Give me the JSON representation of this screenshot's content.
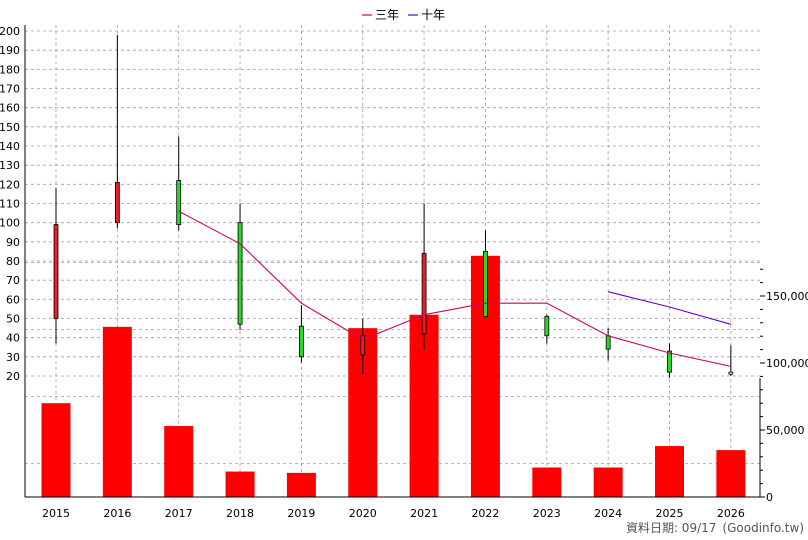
{
  "chart_data": {
    "type": "candlestick+bar+line",
    "legend": [
      {
        "name": "三年",
        "color": "#cc0066"
      },
      {
        "name": "十年",
        "color": "#6600cc"
      }
    ],
    "years": [
      "2015",
      "2016",
      "2017",
      "2018",
      "2019",
      "2020",
      "2021",
      "2022",
      "2023",
      "2024",
      "2025",
      "2026"
    ],
    "price_axis": {
      "min": 20,
      "max": 200,
      "step": 10
    },
    "volume_axis": {
      "min": 0,
      "max": 175000,
      "ticks": [
        0,
        50000,
        100000,
        150000
      ],
      "tick_labels": [
        "0",
        "50,000",
        "100,000",
        "150,000"
      ]
    },
    "candles": [
      {
        "year": "2015",
        "open": 50,
        "close": 99,
        "high": 118,
        "low": 37,
        "color": "red"
      },
      {
        "year": "2016",
        "open": 100,
        "close": 121,
        "high": 198,
        "low": 97,
        "color": "red"
      },
      {
        "year": "2017",
        "open": 122,
        "close": 99,
        "high": 145,
        "low": 96,
        "color": "green"
      },
      {
        "year": "2018",
        "open": 100,
        "close": 47,
        "high": 110,
        "low": 44,
        "color": "green"
      },
      {
        "year": "2019",
        "open": 46,
        "close": 30,
        "high": 57,
        "low": 27,
        "color": "green"
      },
      {
        "year": "2020",
        "open": 31,
        "close": 41,
        "high": 50,
        "low": 21,
        "color": "red"
      },
      {
        "year": "2021",
        "open": 42,
        "close": 84,
        "high": 110,
        "low": 34,
        "color": "red"
      },
      {
        "year": "2022",
        "open": 85,
        "close": 51,
        "high": 96,
        "low": 50,
        "color": "green"
      },
      {
        "year": "2023",
        "open": 51,
        "close": 41,
        "high": 52,
        "low": 37,
        "color": "green"
      },
      {
        "year": "2024",
        "open": 41,
        "close": 34,
        "high": 45,
        "low": 28,
        "color": "green"
      },
      {
        "year": "2025",
        "open": 33,
        "close": 22,
        "high": 37,
        "low": 19,
        "color": "green"
      },
      {
        "year": "2026",
        "open": 22,
        "close": 21,
        "high": 36,
        "low": 20,
        "color": "white"
      }
    ],
    "volumes": [
      70000,
      127000,
      53000,
      19000,
      18000,
      126000,
      136000,
      180000,
      22000,
      22000,
      38000,
      35000
    ],
    "ma_3y": [
      {
        "year": "2017",
        "value": 106
      },
      {
        "year": "2018",
        "value": 89
      },
      {
        "year": "2019",
        "value": 58
      },
      {
        "year": "2020",
        "value": 39
      },
      {
        "year": "2021",
        "value": 52
      },
      {
        "year": "2022",
        "value": 58
      },
      {
        "year": "2023",
        "value": 58
      },
      {
        "year": "2024",
        "value": 41
      },
      {
        "year": "2025",
        "value": 32
      },
      {
        "year": "2026",
        "value": 25
      }
    ],
    "ma_10y": [
      {
        "year": "2024",
        "value": 64
      },
      {
        "year": "2025",
        "value": 56
      },
      {
        "year": "2026",
        "value": 47
      }
    ]
  },
  "footer": {
    "date_label": "資料日期: 09/17",
    "source": "(Goodinfo.tw)"
  }
}
